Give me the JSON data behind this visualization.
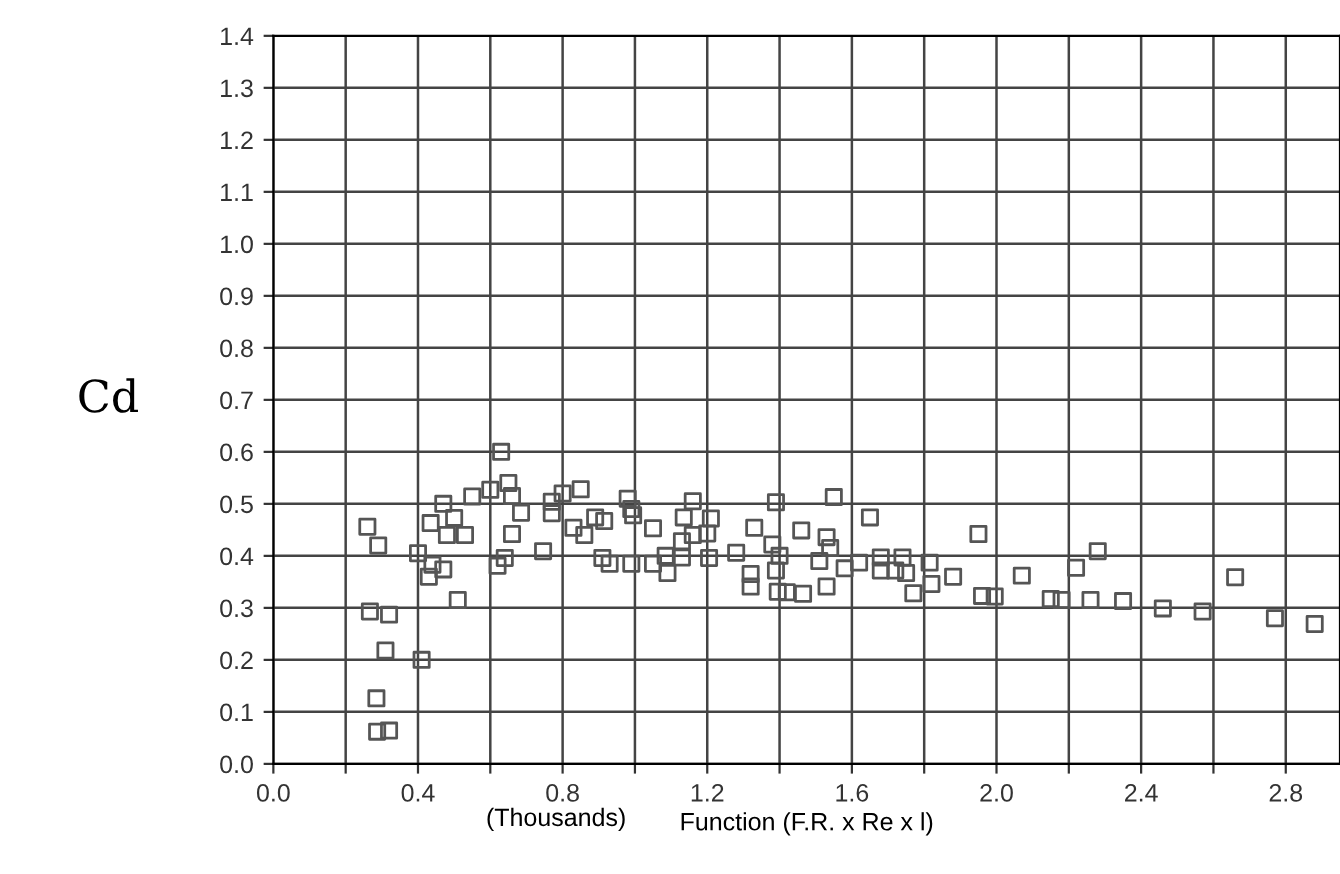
{
  "chart_data": {
    "type": "scatter",
    "xlabel": "Function (F.R. x Re x l)",
    "ylabel": "Cd",
    "annotations": [
      "(Thousands)"
    ],
    "marker": "square",
    "grid": true,
    "xlim": [
      0,
      2.95
    ],
    "ylim": [
      0,
      1.4
    ],
    "xticks": [
      {
        "value": 0.0,
        "label": "0.0"
      },
      {
        "value": 0.2,
        "label": null
      },
      {
        "value": 0.4,
        "label": "0.4"
      },
      {
        "value": 0.6,
        "label": null
      },
      {
        "value": 0.8,
        "label": "0.8"
      },
      {
        "value": 1.0,
        "label": null
      },
      {
        "value": 1.2,
        "label": "1.2"
      },
      {
        "value": 1.4,
        "label": null
      },
      {
        "value": 1.6,
        "label": "1.6"
      },
      {
        "value": 1.8,
        "label": null
      },
      {
        "value": 2.0,
        "label": "2.0"
      },
      {
        "value": 2.2,
        "label": null
      },
      {
        "value": 2.4,
        "label": "2.4"
      },
      {
        "value": 2.6,
        "label": null
      },
      {
        "value": 2.8,
        "label": "2.8"
      }
    ],
    "yticks": [
      {
        "value": 0.0,
        "label": "0.0"
      },
      0.1,
      0.2,
      0.3,
      0.4,
      0.5,
      0.6,
      0.7,
      0.8,
      0.9,
      {
        "value": 1.0,
        "label": "1.0"
      },
      1.1,
      1.2,
      1.3,
      1.4
    ],
    "series": [
      {
        "color": "#555555",
        "x": [
          0.63,
          0.65,
          0.66,
          0.6,
          0.55,
          0.47,
          0.5,
          0.435,
          0.48,
          0.53,
          0.685,
          0.66,
          0.77,
          0.77,
          0.8,
          0.85,
          0.83,
          0.86,
          0.89,
          0.915,
          0.91,
          0.93,
          0.746,
          0.64,
          0.62,
          0.4,
          0.44,
          0.47,
          0.43,
          0.26,
          0.29,
          0.51,
          0.267,
          0.32,
          0.31,
          0.41,
          0.285,
          0.287,
          0.32,
          0.98,
          0.99,
          0.995,
          1.05,
          0.99,
          1.05,
          1.085,
          1.09,
          1.16,
          1.135,
          1.21,
          1.2,
          1.16,
          1.13,
          1.13,
          1.205,
          1.28,
          1.33,
          1.39,
          1.38,
          1.4,
          1.39,
          1.32,
          1.32,
          1.395,
          1.42,
          1.465,
          1.46,
          1.53,
          1.54,
          1.55,
          1.51,
          1.53,
          1.58,
          1.62,
          1.65,
          1.68,
          1.68,
          1.74,
          1.72,
          1.75,
          1.77,
          1.815,
          1.82,
          1.88,
          1.95,
          1.96,
          1.995,
          2.07,
          2.15,
          2.18,
          2.22,
          2.28,
          2.26,
          2.35,
          2.46,
          2.57,
          2.66,
          2.77,
          2.88
        ],
        "values": [
          0.6,
          0.54,
          0.515,
          0.527,
          0.514,
          0.5,
          0.473,
          0.463,
          0.44,
          0.44,
          0.483,
          0.442,
          0.504,
          0.482,
          0.52,
          0.528,
          0.454,
          0.44,
          0.474,
          0.467,
          0.396,
          0.385,
          0.409,
          0.396,
          0.381,
          0.405,
          0.383,
          0.374,
          0.36,
          0.456,
          0.42,
          0.315,
          0.293,
          0.287,
          0.218,
          0.2,
          0.126,
          0.062,
          0.064,
          0.51,
          0.49,
          0.478,
          0.453,
          0.385,
          0.385,
          0.4,
          0.367,
          0.505,
          0.474,
          0.472,
          0.443,
          0.44,
          0.428,
          0.397,
          0.396,
          0.406,
          0.454,
          0.503,
          0.422,
          0.4,
          0.372,
          0.365,
          0.341,
          0.331,
          0.33,
          0.327,
          0.449,
          0.436,
          0.415,
          0.513,
          0.39,
          0.341,
          0.376,
          0.387,
          0.474,
          0.397,
          0.372,
          0.397,
          0.372,
          0.367,
          0.328,
          0.387,
          0.346,
          0.36,
          0.442,
          0.323,
          0.322,
          0.362,
          0.317,
          0.315,
          0.377,
          0.409,
          0.315,
          0.313,
          0.299,
          0.293,
          0.359,
          0.28,
          0.269
        ]
      }
    ]
  }
}
